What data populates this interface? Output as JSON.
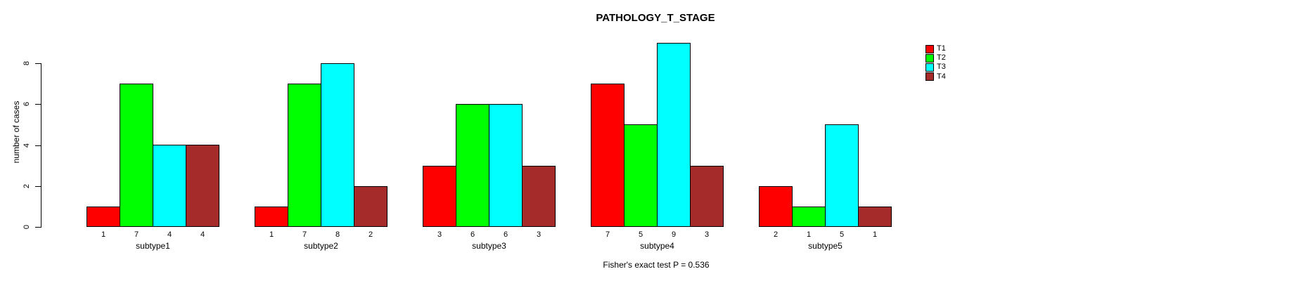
{
  "chart_data": {
    "type": "bar",
    "grouped": true,
    "title": "PATHOLOGY_T_STAGE",
    "xlabel": "",
    "ylabel": "number of cases",
    "categories": [
      "subtype1",
      "subtype2",
      "subtype3",
      "subtype4",
      "subtype5"
    ],
    "series": [
      {
        "name": "T1",
        "color": "#FF0000",
        "values": [
          1,
          1,
          3,
          7,
          2
        ]
      },
      {
        "name": "T2",
        "color": "#00FF00",
        "values": [
          7,
          7,
          6,
          5,
          1
        ]
      },
      {
        "name": "T3",
        "color": "#00FFFF",
        "values": [
          4,
          8,
          6,
          9,
          5
        ]
      },
      {
        "name": "T4",
        "color": "#A52A2A",
        "values": [
          4,
          2,
          3,
          3,
          1
        ]
      }
    ],
    "yticks": [
      0,
      2,
      4,
      6,
      8
    ],
    "ylim": [
      0,
      9
    ],
    "grid": false,
    "bar_value_labels_shown": true,
    "legend_position": "top-right",
    "annotation": "Fisher's exact test P = 0.536"
  }
}
